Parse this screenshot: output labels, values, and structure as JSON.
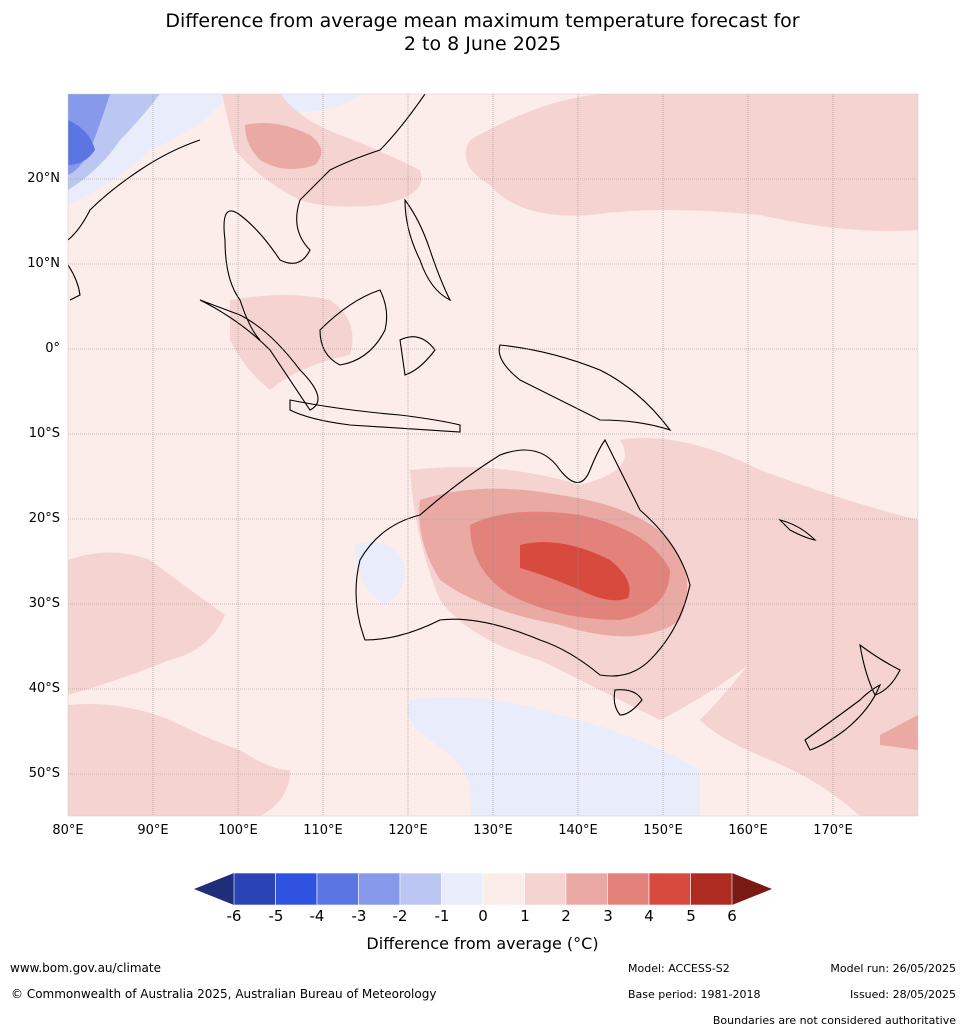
{
  "title_line1": "Difference from average mean maximum temperature forecast for",
  "title_line2": "2 to 8 June 2025",
  "lat_labels": [
    "20°N",
    "10°N",
    "0°",
    "10°S",
    "20°S",
    "30°S",
    "40°S",
    "50°S"
  ],
  "lon_labels": [
    "80°E",
    "90°E",
    "100°E",
    "110°E",
    "120°E",
    "130°E",
    "140°E",
    "150°E",
    "160°E",
    "170°E"
  ],
  "colorbar": {
    "ticks": [
      "-6",
      "-5",
      "-4",
      "-3",
      "-2",
      "-1",
      "0",
      "1",
      "2",
      "3",
      "4",
      "5",
      "6"
    ],
    "title": "Difference from average (°C)",
    "colors": [
      "#1f2d7a",
      "#2a43b5",
      "#2f52e0",
      "#5b75e3",
      "#8799ea",
      "#bcc6f3",
      "#e8ecfb",
      "#fcecea",
      "#f5d3d0",
      "#eba9a4",
      "#e2827a",
      "#d94a3e",
      "#ae2b22",
      "#7b1a14"
    ]
  },
  "footer": {
    "website": "www.bom.gov.au/climate",
    "copyright": "© Commonwealth of Australia 2025, Australian Bureau of Meteorology",
    "model": "Model: ACCESS-S2",
    "base_period": "Base period: 1981-2018",
    "model_run": "Model run: 26/05/2025",
    "issued": "Issued: 28/05/2025",
    "disclaimer": "Boundaries are not considered authoritative"
  }
}
